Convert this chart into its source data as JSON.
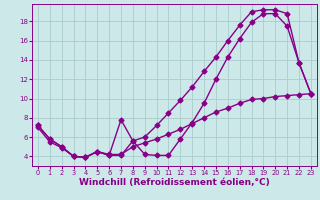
{
  "background_color": "#cce8e8",
  "grid_color": "#aacccc",
  "line_color": "#880088",
  "marker": "D",
  "markersize": 2.5,
  "linewidth": 1.0,
  "xlim": [
    -0.5,
    23.5
  ],
  "ylim": [
    3.0,
    19.8
  ],
  "xlabel": "Windchill (Refroidissement éolien,°C)",
  "xlabel_fontsize": 6.5,
  "ytick_values": [
    4,
    6,
    8,
    10,
    12,
    14,
    16,
    18
  ],
  "xtick_values": [
    0,
    1,
    2,
    3,
    4,
    5,
    6,
    7,
    8,
    9,
    10,
    11,
    12,
    13,
    14,
    15,
    16,
    17,
    18,
    19,
    20,
    21,
    22,
    23
  ],
  "line1_x": [
    0,
    1,
    2,
    3,
    4,
    5,
    6,
    7,
    8,
    9,
    10,
    11,
    12,
    13,
    14,
    15,
    16,
    17,
    18,
    19,
    20,
    21,
    22,
    23
  ],
  "line1_y": [
    7.2,
    5.8,
    5.0,
    4.0,
    3.9,
    4.5,
    4.1,
    7.8,
    5.6,
    4.2,
    4.1,
    4.1,
    5.8,
    7.5,
    9.5,
    12.0,
    14.3,
    16.2,
    17.9,
    18.8,
    18.8,
    17.5,
    13.7,
    10.5
  ],
  "line2_x": [
    0,
    1,
    2,
    3,
    4,
    5,
    6,
    7,
    8,
    9,
    10,
    11,
    12,
    13,
    14,
    15,
    16,
    17,
    18,
    19,
    20,
    21,
    22,
    23
  ],
  "line2_y": [
    7.2,
    5.8,
    5.0,
    4.0,
    3.9,
    4.5,
    4.1,
    4.1,
    5.6,
    6.0,
    7.2,
    8.5,
    9.8,
    11.2,
    12.8,
    14.3,
    16.0,
    17.6,
    19.0,
    19.2,
    19.2,
    18.8,
    13.7,
    10.5
  ],
  "line3_x": [
    0,
    1,
    2,
    3,
    4,
    5,
    6,
    7,
    8,
    9,
    10,
    11,
    12,
    13,
    14,
    15,
    16,
    17,
    18,
    19,
    20,
    21,
    22,
    23
  ],
  "line3_y": [
    7.0,
    5.5,
    4.9,
    4.0,
    3.9,
    4.5,
    4.2,
    4.2,
    5.0,
    5.4,
    5.8,
    6.3,
    6.8,
    7.4,
    8.0,
    8.6,
    9.0,
    9.5,
    9.9,
    10.0,
    10.2,
    10.3,
    10.4,
    10.5
  ]
}
